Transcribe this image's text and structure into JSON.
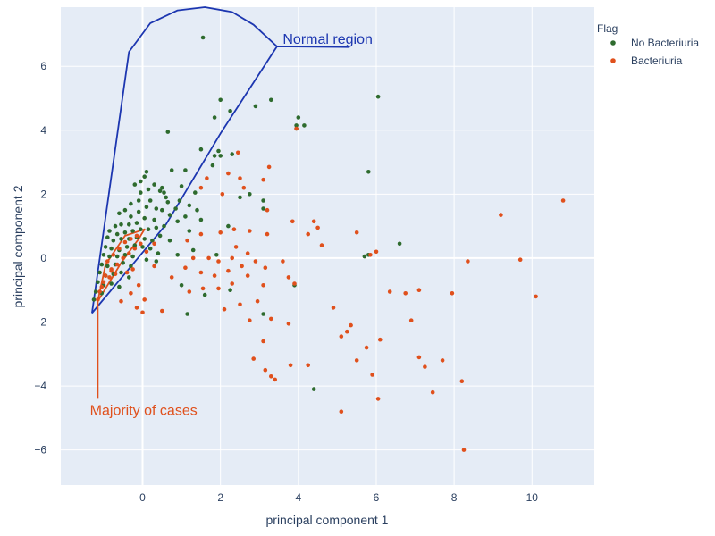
{
  "chart_data": {
    "type": "scatter",
    "title": "",
    "xlabel": "principal component 1",
    "ylabel": "principal component 2",
    "xlim": [
      -2.1,
      11.6
    ],
    "ylim": [
      -7.1,
      7.85
    ],
    "xticks": [
      0,
      2,
      4,
      6,
      8,
      10
    ],
    "yticks": [
      -6,
      -4,
      -2,
      0,
      2,
      4,
      6
    ],
    "grid": true,
    "plot_bg": "#e5ecf6",
    "legend": {
      "title": "Flag",
      "placement": "top-right-outside"
    },
    "series": [
      {
        "name": "No Bacteriuria",
        "color": "#2e6b2e",
        "points": [
          [
            1.55,
            6.9
          ],
          [
            2.0,
            4.95
          ],
          [
            2.25,
            4.6
          ],
          [
            1.85,
            4.4
          ],
          [
            2.9,
            4.75
          ],
          [
            3.3,
            4.95
          ],
          [
            4.0,
            4.4
          ],
          [
            3.95,
            4.15
          ],
          [
            4.15,
            4.15
          ],
          [
            3.95,
            4.05
          ],
          [
            6.05,
            5.05
          ],
          [
            0.65,
            3.95
          ],
          [
            1.5,
            3.4
          ],
          [
            1.95,
            3.35
          ],
          [
            1.85,
            3.2
          ],
          [
            2.3,
            3.25
          ],
          [
            2.0,
            3.2
          ],
          [
            1.8,
            2.9
          ],
          [
            5.8,
            2.7
          ],
          [
            6.6,
            0.45
          ],
          [
            5.7,
            0.05
          ],
          [
            5.8,
            0.1
          ],
          [
            3.1,
            1.55
          ],
          [
            3.1,
            1.8
          ],
          [
            2.75,
            2.0
          ],
          [
            1.35,
            2.05
          ],
          [
            1.0,
            2.25
          ],
          [
            0.1,
            2.7
          ],
          [
            0.05,
            2.55
          ],
          [
            -0.05,
            2.4
          ],
          [
            -0.2,
            2.3
          ],
          [
            0.15,
            2.15
          ],
          [
            -0.05,
            2.05
          ],
          [
            0.3,
            2.3
          ],
          [
            0.5,
            2.2
          ],
          [
            0.45,
            2.1
          ],
          [
            0.55,
            2.05
          ],
          [
            0.6,
            1.9
          ],
          [
            0.2,
            1.8
          ],
          [
            -0.1,
            1.8
          ],
          [
            -0.3,
            1.7
          ],
          [
            -0.45,
            1.5
          ],
          [
            -0.6,
            1.4
          ],
          [
            -0.3,
            1.3
          ],
          [
            -0.1,
            1.45
          ],
          [
            0.1,
            1.6
          ],
          [
            0.35,
            1.55
          ],
          [
            0.5,
            1.5
          ],
          [
            0.65,
            1.75
          ],
          [
            0.7,
            1.35
          ],
          [
            0.85,
            1.55
          ],
          [
            0.95,
            1.8
          ],
          [
            1.2,
            1.65
          ],
          [
            1.4,
            1.5
          ],
          [
            1.1,
            1.3
          ],
          [
            0.9,
            1.15
          ],
          [
            0.3,
            1.2
          ],
          [
            0.05,
            1.25
          ],
          [
            -0.15,
            1.1
          ],
          [
            -0.35,
            1.05
          ],
          [
            -0.55,
            1.05
          ],
          [
            -0.7,
            1.0
          ],
          [
            -0.85,
            0.85
          ],
          [
            -0.65,
            0.75
          ],
          [
            -0.45,
            0.8
          ],
          [
            -0.25,
            0.85
          ],
          [
            -0.05,
            0.9
          ],
          [
            0.15,
            0.9
          ],
          [
            0.35,
            0.95
          ],
          [
            0.55,
            1.0
          ],
          [
            -0.9,
            0.65
          ],
          [
            -0.75,
            0.55
          ],
          [
            -0.55,
            0.6
          ],
          [
            -0.35,
            0.6
          ],
          [
            -0.15,
            0.65
          ],
          [
            0.05,
            0.6
          ],
          [
            0.25,
            0.55
          ],
          [
            0.45,
            0.7
          ],
          [
            0.7,
            0.55
          ],
          [
            1.3,
            0.25
          ],
          [
            1.9,
            0.1
          ],
          [
            -0.95,
            0.35
          ],
          [
            -0.8,
            0.3
          ],
          [
            -0.6,
            0.25
          ],
          [
            -0.4,
            0.35
          ],
          [
            -0.2,
            0.4
          ],
          [
            0.0,
            0.35
          ],
          [
            0.2,
            0.3
          ],
          [
            0.4,
            0.15
          ],
          [
            -1.0,
            0.1
          ],
          [
            -0.85,
            0.05
          ],
          [
            -0.65,
            0.05
          ],
          [
            -0.45,
            0.1
          ],
          [
            -0.25,
            0.05
          ],
          [
            0.1,
            -0.05
          ],
          [
            0.35,
            -0.1
          ],
          [
            -1.05,
            -0.2
          ],
          [
            -0.9,
            -0.25
          ],
          [
            -0.7,
            -0.2
          ],
          [
            -0.5,
            -0.15
          ],
          [
            -0.3,
            -0.25
          ],
          [
            -1.1,
            -0.45
          ],
          [
            -0.95,
            -0.55
          ],
          [
            -0.75,
            -0.5
          ],
          [
            -0.55,
            -0.45
          ],
          [
            -0.35,
            -0.6
          ],
          [
            -1.15,
            -0.75
          ],
          [
            -1.0,
            -0.85
          ],
          [
            -0.8,
            -0.8
          ],
          [
            -0.6,
            -0.9
          ],
          [
            -1.2,
            -1.05
          ],
          [
            -1.05,
            -1.1
          ],
          [
            -1.25,
            -1.3
          ],
          [
            1.0,
            -0.85
          ],
          [
            1.6,
            -1.15
          ],
          [
            2.25,
            -1.0
          ],
          [
            1.15,
            -1.75
          ],
          [
            3.1,
            -1.75
          ],
          [
            3.9,
            -0.85
          ],
          [
            4.4,
            -4.1
          ],
          [
            0.9,
            0.1
          ],
          [
            1.2,
            0.85
          ],
          [
            1.5,
            1.2
          ],
          [
            2.5,
            1.9
          ],
          [
            2.2,
            1.0
          ],
          [
            0.75,
            2.75
          ],
          [
            1.1,
            2.75
          ]
        ]
      },
      {
        "name": "Bacteriuria",
        "color": "#e0501c",
        "points": [
          [
            3.95,
            4.05
          ],
          [
            3.25,
            2.85
          ],
          [
            2.45,
            3.3
          ],
          [
            2.2,
            2.65
          ],
          [
            2.5,
            2.5
          ],
          [
            2.6,
            2.2
          ],
          [
            1.65,
            2.5
          ],
          [
            1.5,
            2.2
          ],
          [
            2.05,
            2.0
          ],
          [
            3.1,
            2.45
          ],
          [
            3.2,
            1.5
          ],
          [
            3.85,
            1.15
          ],
          [
            4.4,
            1.15
          ],
          [
            4.5,
            0.95
          ],
          [
            4.6,
            0.4
          ],
          [
            5.5,
            0.8
          ],
          [
            4.25,
            0.75
          ],
          [
            3.2,
            0.75
          ],
          [
            2.75,
            0.85
          ],
          [
            2.35,
            0.9
          ],
          [
            2.0,
            0.8
          ],
          [
            1.5,
            0.75
          ],
          [
            1.15,
            0.55
          ],
          [
            2.4,
            0.35
          ],
          [
            2.7,
            0.15
          ],
          [
            2.3,
            0.0
          ],
          [
            1.95,
            -0.1
          ],
          [
            1.7,
            0.0
          ],
          [
            1.3,
            0.0
          ],
          [
            1.1,
            -0.3
          ],
          [
            1.5,
            -0.45
          ],
          [
            1.85,
            -0.55
          ],
          [
            2.2,
            -0.4
          ],
          [
            2.55,
            -0.25
          ],
          [
            2.9,
            -0.1
          ],
          [
            3.15,
            -0.3
          ],
          [
            3.6,
            -0.1
          ],
          [
            3.75,
            -0.6
          ],
          [
            3.9,
            -0.8
          ],
          [
            3.1,
            -0.85
          ],
          [
            2.7,
            -0.55
          ],
          [
            2.3,
            -0.8
          ],
          [
            1.95,
            -0.95
          ],
          [
            1.55,
            -0.95
          ],
          [
            1.2,
            -1.05
          ],
          [
            0.75,
            -0.6
          ],
          [
            0.3,
            -0.25
          ],
          [
            -0.1,
            -0.85
          ],
          [
            -0.3,
            -1.1
          ],
          [
            -0.55,
            -1.35
          ],
          [
            0.05,
            -1.3
          ],
          [
            -0.15,
            -1.55
          ],
          [
            0.0,
            -1.7
          ],
          [
            0.5,
            -1.65
          ],
          [
            2.1,
            -1.6
          ],
          [
            2.5,
            -1.45
          ],
          [
            2.95,
            -1.35
          ],
          [
            3.3,
            -1.9
          ],
          [
            2.75,
            -1.95
          ],
          [
            3.75,
            -2.05
          ],
          [
            3.1,
            -2.6
          ],
          [
            2.85,
            -3.15
          ],
          [
            3.8,
            -3.35
          ],
          [
            3.15,
            -3.5
          ],
          [
            3.3,
            -3.7
          ],
          [
            3.4,
            -3.8
          ],
          [
            4.25,
            -3.35
          ],
          [
            4.9,
            -1.55
          ],
          [
            5.35,
            -2.1
          ],
          [
            5.1,
            -2.45
          ],
          [
            5.25,
            -2.3
          ],
          [
            5.75,
            -2.8
          ],
          [
            5.5,
            -3.2
          ],
          [
            6.1,
            -2.55
          ],
          [
            5.9,
            -3.65
          ],
          [
            6.05,
            -4.4
          ],
          [
            5.1,
            -4.8
          ],
          [
            6.35,
            -1.05
          ],
          [
            6.75,
            -1.1
          ],
          [
            7.1,
            -1.0
          ],
          [
            6.9,
            -1.95
          ],
          [
            7.25,
            -3.4
          ],
          [
            7.45,
            -4.2
          ],
          [
            7.1,
            -3.1
          ],
          [
            7.7,
            -3.2
          ],
          [
            7.95,
            -1.1
          ],
          [
            8.2,
            -3.85
          ],
          [
            8.35,
            -0.1
          ],
          [
            8.25,
            -6.0
          ],
          [
            9.2,
            1.35
          ],
          [
            9.7,
            -0.05
          ],
          [
            10.1,
            -1.2
          ],
          [
            10.8,
            1.8
          ],
          [
            5.85,
            0.1
          ],
          [
            6.0,
            0.2
          ],
          [
            -0.9,
            -0.1
          ],
          [
            -0.75,
            0.1
          ],
          [
            -0.6,
            0.3
          ],
          [
            -0.45,
            0.5
          ],
          [
            -0.3,
            0.6
          ],
          [
            -0.15,
            0.7
          ],
          [
            -0.8,
            -0.35
          ],
          [
            -0.65,
            -0.2
          ],
          [
            -0.5,
            0.0
          ],
          [
            -0.35,
            0.15
          ],
          [
            -0.2,
            0.3
          ],
          [
            -0.05,
            0.45
          ],
          [
            -0.95,
            -0.55
          ],
          [
            -0.8,
            -0.4
          ],
          [
            -1.0,
            -0.75
          ],
          [
            -0.85,
            -0.6
          ],
          [
            -0.7,
            -0.5
          ],
          [
            -1.05,
            -0.9
          ],
          [
            -1.1,
            -1.05
          ],
          [
            -0.4,
            -0.45
          ],
          [
            -0.25,
            -0.35
          ],
          [
            0.1,
            0.2
          ],
          [
            0.3,
            0.45
          ],
          [
            -1.15,
            -1.3
          ]
        ]
      }
    ],
    "annotations": [
      {
        "text": "Normal region",
        "color": "#1c36b0",
        "anchor": [
          3.6,
          6.7
        ],
        "outline": [
          [
            -1.3,
            -1.72
          ],
          [
            -0.35,
            6.45
          ],
          [
            0.2,
            7.35
          ],
          [
            0.9,
            7.75
          ],
          [
            1.6,
            7.85
          ],
          [
            2.3,
            7.7
          ],
          [
            2.85,
            7.3
          ],
          [
            3.45,
            6.62
          ],
          [
            5.3,
            6.6
          ],
          [
            3.45,
            6.62
          ],
          [
            2.0,
            3.9
          ],
          [
            0.6,
            1.05
          ],
          [
            -1.3,
            -1.72
          ]
        ]
      },
      {
        "text": "Majority of cases",
        "color": "#e0501c",
        "anchor": [
          -1.35,
          -4.9
        ],
        "outline": [
          [
            -1.15,
            -4.4
          ],
          [
            -1.15,
            -1.35
          ],
          [
            -0.55,
            -0.15
          ],
          [
            -0.1,
            0.6
          ],
          [
            0.05,
            0.9
          ],
          [
            -0.45,
            0.7
          ],
          [
            -0.95,
            -0.2
          ],
          [
            -1.15,
            -1.35
          ]
        ]
      }
    ]
  }
}
